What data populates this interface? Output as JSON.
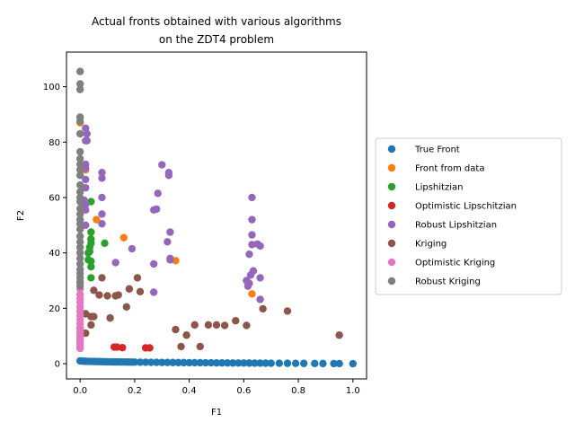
{
  "chart_data": {
    "type": "scatter",
    "title_line1": "Actual fronts obtained with various algorithms",
    "title_line2": "on the ZDT4 problem",
    "xlabel": "F1",
    "ylabel": "F2",
    "xlim": [
      -0.05,
      1.05
    ],
    "ylim": [
      -5.5,
      112.5
    ],
    "xticks": [
      0.0,
      0.2,
      0.4,
      0.6,
      0.8,
      1.0
    ],
    "xtick_labels": [
      "0.0",
      "0.2",
      "0.4",
      "0.6",
      "0.8",
      "1.0"
    ],
    "yticks": [
      0,
      20,
      40,
      60,
      80,
      100
    ],
    "ytick_labels": [
      "0",
      "20",
      "40",
      "60",
      "80",
      "100"
    ],
    "grid": false,
    "legend_position": "outside-right",
    "series": [
      {
        "name": "True Front",
        "color": "#1f77b4",
        "points": [
          [
            0.0,
            1.0
          ],
          [
            0.01,
            0.9
          ],
          [
            0.02,
            0.86
          ],
          [
            0.03,
            0.83
          ],
          [
            0.04,
            0.8
          ],
          [
            0.05,
            0.78
          ],
          [
            0.06,
            0.76
          ],
          [
            0.07,
            0.74
          ],
          [
            0.08,
            0.72
          ],
          [
            0.09,
            0.7
          ],
          [
            0.1,
            0.68
          ],
          [
            0.11,
            0.67
          ],
          [
            0.12,
            0.65
          ],
          [
            0.13,
            0.64
          ],
          [
            0.14,
            0.63
          ],
          [
            0.15,
            0.61
          ],
          [
            0.16,
            0.6
          ],
          [
            0.17,
            0.59
          ],
          [
            0.18,
            0.58
          ],
          [
            0.19,
            0.56
          ],
          [
            0.2,
            0.55
          ],
          [
            0.22,
            0.53
          ],
          [
            0.24,
            0.51
          ],
          [
            0.26,
            0.49
          ],
          [
            0.28,
            0.47
          ],
          [
            0.3,
            0.45
          ],
          [
            0.32,
            0.43
          ],
          [
            0.34,
            0.42
          ],
          [
            0.36,
            0.4
          ],
          [
            0.38,
            0.38
          ],
          [
            0.4,
            0.37
          ],
          [
            0.42,
            0.35
          ],
          [
            0.44,
            0.34
          ],
          [
            0.46,
            0.32
          ],
          [
            0.48,
            0.31
          ],
          [
            0.5,
            0.29
          ],
          [
            0.52,
            0.28
          ],
          [
            0.54,
            0.27
          ],
          [
            0.56,
            0.25
          ],
          [
            0.58,
            0.24
          ],
          [
            0.6,
            0.23
          ],
          [
            0.62,
            0.21
          ],
          [
            0.64,
            0.2
          ],
          [
            0.66,
            0.19
          ],
          [
            0.68,
            0.18
          ],
          [
            0.7,
            0.16
          ],
          [
            0.73,
            0.15
          ],
          [
            0.76,
            0.13
          ],
          [
            0.79,
            0.11
          ],
          [
            0.82,
            0.09
          ],
          [
            0.86,
            0.07
          ],
          [
            0.89,
            0.06
          ],
          [
            0.93,
            0.04
          ],
          [
            0.95,
            0.03
          ],
          [
            1.0,
            0.0
          ]
        ]
      },
      {
        "name": "Front from data",
        "color": "#ff7f0e",
        "points": [
          [
            0.0,
            87.0
          ],
          [
            0.02,
            70.0
          ],
          [
            0.06,
            52.0
          ],
          [
            0.16,
            45.5
          ],
          [
            0.35,
            37.2
          ],
          [
            0.63,
            25.2
          ]
        ]
      },
      {
        "name": "Lipshitzian",
        "color": "#2ca02c",
        "points": [
          [
            0.04,
            58.5
          ],
          [
            0.04,
            47.5
          ],
          [
            0.04,
            45.0
          ],
          [
            0.04,
            43.5
          ],
          [
            0.035,
            42.0
          ],
          [
            0.035,
            40.5
          ],
          [
            0.04,
            37.0
          ],
          [
            0.04,
            35.0
          ],
          [
            0.04,
            31.0
          ],
          [
            0.09,
            43.5
          ],
          [
            0.03,
            40.0
          ],
          [
            0.03,
            37.5
          ]
        ]
      },
      {
        "name": "Optimistic Lipschitzian",
        "color": "#d62728",
        "points": [
          [
            0.125,
            6.0
          ],
          [
            0.135,
            6.0
          ],
          [
            0.155,
            5.8
          ],
          [
            0.24,
            5.7
          ],
          [
            0.255,
            5.7
          ]
        ]
      },
      {
        "name": "Robust Lipshitzian",
        "color": "#9467bd",
        "points": [
          [
            0.02,
            85.0
          ],
          [
            0.025,
            83.0
          ],
          [
            0.02,
            80.5
          ],
          [
            0.025,
            80.5
          ],
          [
            0.02,
            72.0
          ],
          [
            0.02,
            70.5
          ],
          [
            0.02,
            66.5
          ],
          [
            0.02,
            63.5
          ],
          [
            0.015,
            59.0
          ],
          [
            0.02,
            57.5
          ],
          [
            0.02,
            55.5
          ],
          [
            0.02,
            50.0
          ],
          [
            0.08,
            69.0
          ],
          [
            0.08,
            67.0
          ],
          [
            0.08,
            60.0
          ],
          [
            0.08,
            54.0
          ],
          [
            0.08,
            50.5
          ],
          [
            0.13,
            36.5
          ],
          [
            0.19,
            41.5
          ],
          [
            0.27,
            55.5
          ],
          [
            0.28,
            55.8
          ],
          [
            0.285,
            61.5
          ],
          [
            0.3,
            71.8
          ],
          [
            0.325,
            69.0
          ],
          [
            0.325,
            68.0
          ],
          [
            0.32,
            44.0
          ],
          [
            0.33,
            47.5
          ],
          [
            0.33,
            38.0
          ],
          [
            0.33,
            37.5
          ],
          [
            0.27,
            36.0
          ],
          [
            0.27,
            25.8
          ],
          [
            0.63,
            60.0
          ],
          [
            0.63,
            52.0
          ],
          [
            0.63,
            46.5
          ],
          [
            0.63,
            43.0
          ],
          [
            0.65,
            43.2
          ],
          [
            0.66,
            42.5
          ],
          [
            0.62,
            39.5
          ],
          [
            0.635,
            33.5
          ],
          [
            0.625,
            32.0
          ],
          [
            0.61,
            30.0
          ],
          [
            0.62,
            29.0
          ],
          [
            0.66,
            31.0
          ],
          [
            0.66,
            23.2
          ],
          [
            0.615,
            28.0
          ]
        ]
      },
      {
        "name": "Kriging",
        "color": "#8c564b",
        "points": [
          [
            0.02,
            18.0
          ],
          [
            0.04,
            17.0
          ],
          [
            0.05,
            17.0
          ],
          [
            0.05,
            26.5
          ],
          [
            0.07,
            24.8
          ],
          [
            0.08,
            31.0
          ],
          [
            0.1,
            24.5
          ],
          [
            0.11,
            16.5
          ],
          [
            0.13,
            24.5
          ],
          [
            0.14,
            24.8
          ],
          [
            0.17,
            20.5
          ],
          [
            0.18,
            27.0
          ],
          [
            0.21,
            31.0
          ],
          [
            0.22,
            26.0
          ],
          [
            0.04,
            14.0
          ],
          [
            0.35,
            12.3
          ],
          [
            0.37,
            6.2
          ],
          [
            0.39,
            10.3
          ],
          [
            0.42,
            14.0
          ],
          [
            0.44,
            6.2
          ],
          [
            0.47,
            14.0
          ],
          [
            0.5,
            14.0
          ],
          [
            0.53,
            13.8
          ],
          [
            0.57,
            15.5
          ],
          [
            0.61,
            13.8
          ],
          [
            0.67,
            19.8
          ],
          [
            0.76,
            19.0
          ],
          [
            0.95,
            10.3
          ],
          [
            0.02,
            11.0
          ]
        ]
      },
      {
        "name": "Optimistic Kriging",
        "color": "#e377c2",
        "points": [
          [
            0.0,
            29.0
          ],
          [
            0.0,
            27.0
          ],
          [
            0.0,
            25.0
          ],
          [
            0.0,
            23.5
          ],
          [
            0.0,
            22.0
          ],
          [
            0.0,
            20.5
          ],
          [
            0.0,
            19.0
          ],
          [
            0.0,
            17.5
          ],
          [
            0.0,
            16.0
          ],
          [
            0.0,
            14.5
          ],
          [
            0.0,
            13.0
          ],
          [
            0.0,
            12.0
          ],
          [
            0.0,
            11.0
          ],
          [
            0.0,
            10.0
          ],
          [
            0.0,
            9.0
          ],
          [
            0.0,
            8.0
          ],
          [
            0.0,
            7.0
          ],
          [
            0.0,
            6.0
          ],
          [
            0.0,
            5.5
          ]
        ]
      },
      {
        "name": "Robust Kriging",
        "color": "#7f7f7f",
        "points": [
          [
            0.0,
            105.5
          ],
          [
            0.0,
            101.0
          ],
          [
            0.0,
            99.0
          ],
          [
            0.0,
            89.0
          ],
          [
            0.0,
            87.5
          ],
          [
            0.0,
            83.0
          ],
          [
            0.0,
            76.5
          ],
          [
            0.0,
            74.0
          ],
          [
            0.0,
            72.0
          ],
          [
            0.0,
            70.0
          ],
          [
            0.0,
            68.0
          ],
          [
            0.0,
            64.5
          ],
          [
            0.0,
            62.0
          ],
          [
            0.0,
            60.0
          ],
          [
            0.0,
            58.5
          ],
          [
            0.0,
            56.0
          ],
          [
            0.0,
            54.0
          ],
          [
            0.0,
            52.0
          ],
          [
            0.0,
            50.5
          ],
          [
            0.0,
            48.5
          ],
          [
            0.0,
            46.0
          ],
          [
            0.0,
            44.0
          ],
          [
            0.0,
            42.0
          ],
          [
            0.0,
            40.0
          ],
          [
            0.0,
            38.0
          ],
          [
            0.0,
            36.0
          ],
          [
            0.0,
            34.0
          ],
          [
            0.0,
            32.5
          ],
          [
            0.0,
            31.0
          ],
          [
            0.0,
            29.5
          ],
          [
            0.0,
            28.0
          ]
        ]
      }
    ]
  }
}
